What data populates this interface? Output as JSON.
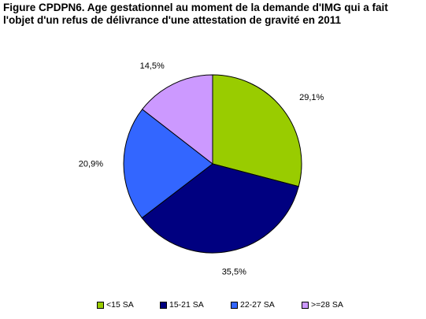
{
  "chart_data": {
    "type": "pie",
    "title_lines": [
      "Figure CPDPN6. Age gestationnel au moment de la demande d'IMG qui a fait",
      "l'objet d'un refus de délivrance d'une attestation de gravité en 2011"
    ],
    "slices": [
      {
        "category": "<15 SA",
        "value": 29.1,
        "label": "29,1%",
        "color": "#99CC00"
      },
      {
        "category": "15-21 SA",
        "value": 35.5,
        "label": "35,5%",
        "color": "#000080"
      },
      {
        "category": "22-27 SA",
        "value": 20.9,
        "label": "20,9%",
        "color": "#3366FF"
      },
      {
        "category": ">=28 SA",
        "value": 14.5,
        "label": "14,5%",
        "color": "#CC99FF"
      }
    ],
    "start_angle": "12 o'clock",
    "direction": "clockwise",
    "legend_position": "bottom"
  }
}
